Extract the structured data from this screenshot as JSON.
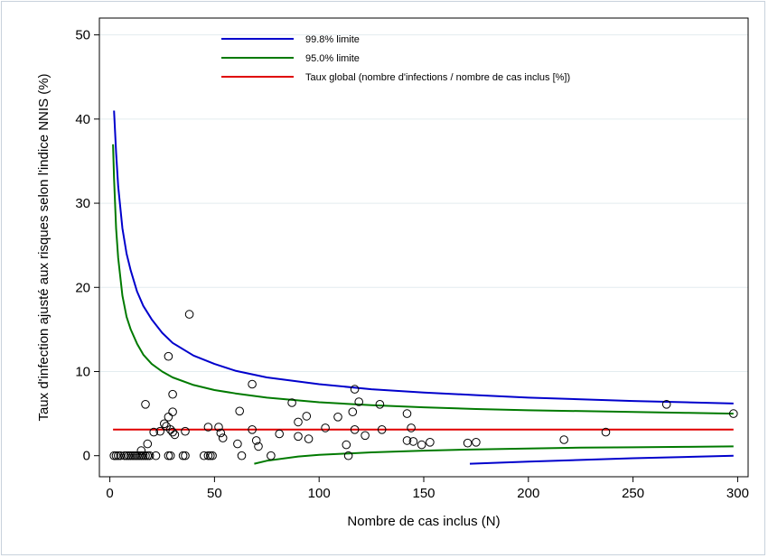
{
  "chart_data": {
    "type": "scatter",
    "xlabel": "Nombre de cas inclus (N)",
    "ylabel": "Taux d'infection ajusté aux risques selon l'indice NNIS (%)",
    "xlim": [
      -5,
      305
    ],
    "ylim": [
      -2.5,
      52
    ],
    "xticks": [
      0,
      50,
      100,
      150,
      200,
      250,
      300
    ],
    "yticks": [
      0,
      10,
      20,
      30,
      40,
      50
    ],
    "grid": true,
    "legend_position": "top",
    "legend": [
      {
        "label": "99.8% limite",
        "color": "#0000cc"
      },
      {
        "label": "95.0% limite",
        "color": "#007a00"
      },
      {
        "label": "Taux global (nombre d'infections / nombre de cas inclus [%])",
        "color": "#e00000"
      }
    ],
    "overall_rate": 3.1,
    "series": [
      {
        "color": "#0000cc",
        "segments": [
          [
            [
              2,
              41
            ],
            [
              3,
              36
            ],
            [
              4,
              32
            ],
            [
              6,
              27
            ],
            [
              8,
              24
            ],
            [
              10,
              22
            ],
            [
              13,
              19.5
            ],
            [
              16,
              17.8
            ],
            [
              20,
              16.2
            ],
            [
              25,
              14.6
            ],
            [
              30,
              13.4
            ],
            [
              40,
              11.9
            ],
            [
              50,
              10.9
            ],
            [
              60,
              10.1
            ],
            [
              75,
              9.3
            ],
            [
              100,
              8.5
            ],
            [
              125,
              7.9
            ],
            [
              150,
              7.5
            ],
            [
              175,
              7.2
            ],
            [
              200,
              6.9
            ],
            [
              225,
              6.7
            ],
            [
              250,
              6.5
            ],
            [
              275,
              6.35
            ],
            [
              298,
              6.2
            ]
          ],
          [
            [
              172,
              -0.95
            ],
            [
              200,
              -0.7
            ],
            [
              225,
              -0.5
            ],
            [
              250,
              -0.3
            ],
            [
              275,
              -0.15
            ],
            [
              298,
              0
            ]
          ]
        ]
      },
      {
        "color": "#007a00",
        "segments": [
          [
            [
              1.5,
              37
            ],
            [
              2,
              33
            ],
            [
              3,
              27
            ],
            [
              4,
              23.5
            ],
            [
              6,
              19
            ],
            [
              8,
              16.5
            ],
            [
              10,
              15
            ],
            [
              13,
              13.3
            ],
            [
              16,
              12
            ],
            [
              20,
              10.9
            ],
            [
              25,
              10
            ],
            [
              30,
              9.3
            ],
            [
              40,
              8.4
            ],
            [
              50,
              7.8
            ],
            [
              60,
              7.4
            ],
            [
              75,
              6.9
            ],
            [
              100,
              6.35
            ],
            [
              125,
              6
            ],
            [
              150,
              5.75
            ],
            [
              175,
              5.55
            ],
            [
              200,
              5.4
            ],
            [
              225,
              5.3
            ],
            [
              250,
              5.2
            ],
            [
              275,
              5.1
            ],
            [
              298,
              5
            ]
          ],
          [
            [
              69,
              -0.95
            ],
            [
              75,
              -0.6
            ],
            [
              90,
              -0.1
            ],
            [
              100,
              0.1
            ],
            [
              125,
              0.4
            ],
            [
              150,
              0.6
            ],
            [
              175,
              0.75
            ],
            [
              200,
              0.85
            ],
            [
              225,
              0.95
            ],
            [
              250,
              1
            ],
            [
              275,
              1.05
            ],
            [
              298,
              1.1
            ]
          ]
        ]
      },
      {
        "color": "#e00000",
        "segments": [
          [
            [
              1.5,
              3.1
            ],
            [
              298,
              3.1
            ]
          ]
        ]
      }
    ],
    "points": [
      [
        2,
        0
      ],
      [
        3,
        0
      ],
      [
        4,
        0
      ],
      [
        5,
        0
      ],
      [
        7,
        0
      ],
      [
        8,
        0
      ],
      [
        9,
        0
      ],
      [
        10,
        0
      ],
      [
        11,
        0
      ],
      [
        12,
        0
      ],
      [
        13,
        0
      ],
      [
        14,
        0
      ],
      [
        15,
        0
      ],
      [
        16,
        0
      ],
      [
        17,
        0
      ],
      [
        18,
        0
      ],
      [
        19,
        0
      ],
      [
        22,
        0
      ],
      [
        28,
        0
      ],
      [
        29,
        0
      ],
      [
        35,
        0
      ],
      [
        36,
        0
      ],
      [
        45,
        0
      ],
      [
        47,
        0
      ],
      [
        48,
        0
      ],
      [
        49,
        0
      ],
      [
        63,
        0
      ],
      [
        77,
        0
      ],
      [
        114,
        0
      ],
      [
        15,
        0.6
      ],
      [
        18,
        1.4
      ],
      [
        17,
        6.1
      ],
      [
        21,
        2.8
      ],
      [
        24,
        2.9
      ],
      [
        26,
        3.8
      ],
      [
        27,
        3.5
      ],
      [
        28,
        4.6
      ],
      [
        29,
        3.1
      ],
      [
        30,
        2.8
      ],
      [
        30,
        5.2
      ],
      [
        31,
        2.5
      ],
      [
        30,
        7.3
      ],
      [
        28,
        11.8
      ],
      [
        38,
        16.8
      ],
      [
        36,
        2.9
      ],
      [
        47,
        3.4
      ],
      [
        52,
        3.4
      ],
      [
        53,
        2.7
      ],
      [
        54,
        2.1
      ],
      [
        61,
        1.4
      ],
      [
        62,
        5.3
      ],
      [
        68,
        3.1
      ],
      [
        68,
        8.5
      ],
      [
        70,
        1.8
      ],
      [
        71,
        1.1
      ],
      [
        81,
        2.6
      ],
      [
        87,
        6.3
      ],
      [
        90,
        4
      ],
      [
        90,
        2.3
      ],
      [
        94,
        4.7
      ],
      [
        95,
        2
      ],
      [
        103,
        3.3
      ],
      [
        109,
        4.6
      ],
      [
        113,
        1.3
      ],
      [
        116,
        5.2
      ],
      [
        117,
        3.1
      ],
      [
        117,
        7.9
      ],
      [
        119,
        6.4
      ],
      [
        122,
        2.4
      ],
      [
        129,
        6.1
      ],
      [
        130,
        3.1
      ],
      [
        142,
        5
      ],
      [
        142,
        1.8
      ],
      [
        144,
        3.3
      ],
      [
        145,
        1.7
      ],
      [
        149,
        1.3
      ],
      [
        153,
        1.6
      ],
      [
        171,
        1.5
      ],
      [
        175,
        1.6
      ],
      [
        217,
        1.9
      ],
      [
        237,
        2.8
      ],
      [
        266,
        6.1
      ],
      [
        298,
        5
      ]
    ]
  }
}
